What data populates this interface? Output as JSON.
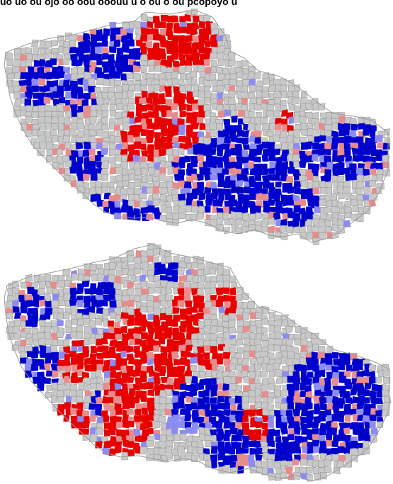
{
  "header": {
    "caption_fragment": "uo  uo  ou ojo oo  oou  ooouu  u  o ou o  ou   pcopoyo  u"
  },
  "maps": [
    {
      "label": "",
      "position": "top"
    },
    {
      "label": "",
      "position": "bottom"
    }
  ],
  "legend_colors": {
    "strong_right": "#0000cc",
    "weak_right": "#8c8cf0",
    "weak_left": "#e68c8c",
    "strong_left": "#e60000",
    "other_municipality": "#c8c8c8",
    "outline": "#9a9a9a"
  }
}
